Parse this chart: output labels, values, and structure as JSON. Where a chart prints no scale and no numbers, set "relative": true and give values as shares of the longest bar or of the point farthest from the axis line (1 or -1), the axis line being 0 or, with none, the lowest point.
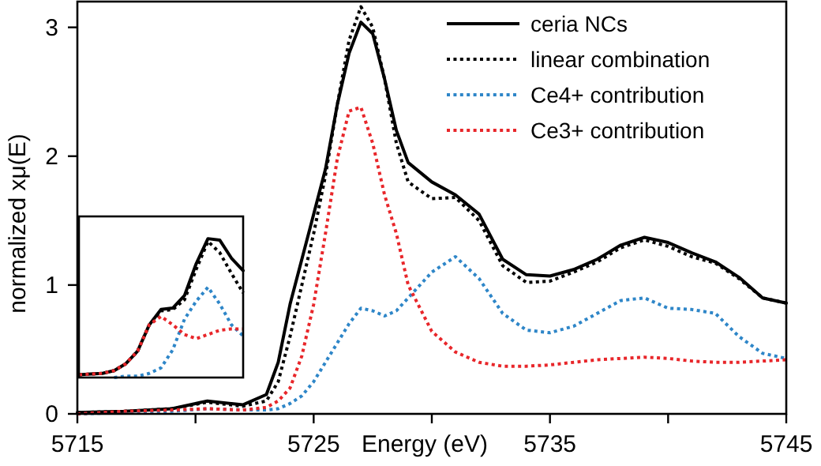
{
  "chart_data": [
    {
      "type": "line",
      "xlabel": "Energy (eV)",
      "ylabel": "normalized xμ(E)",
      "legend": "top right",
      "xlim": [
        5715,
        5745
      ],
      "xticks": [
        5715,
        {
          "value": 5720,
          "label": null
        },
        5725,
        {
          "value": 5730,
          "label": null
        },
        5735,
        {
          "value": 5740,
          "label": null
        },
        5745
      ],
      "ylim": [
        0,
        3.2
      ],
      "yticks": [
        0,
        1,
        2,
        3
      ],
      "x": [
        5715,
        5717,
        5719,
        5720.5,
        5722,
        5723,
        5723.5,
        5724,
        5724.5,
        5725,
        5725.5,
        5726,
        5726.5,
        5727,
        5727.5,
        5728,
        5728.5,
        5729,
        5730,
        5731,
        5732,
        5733,
        5734,
        5735,
        5736,
        5737,
        5738,
        5739,
        5740,
        5741,
        5742,
        5743,
        5744,
        5745
      ],
      "series": [
        {
          "name": "ceria NCs",
          "color": "#000000",
          "line_style": "solid",
          "values": [
            0.01,
            0.02,
            0.04,
            0.1,
            0.07,
            0.15,
            0.4,
            0.85,
            1.2,
            1.55,
            1.9,
            2.4,
            2.8,
            3.04,
            2.95,
            2.6,
            2.2,
            1.95,
            1.8,
            1.7,
            1.55,
            1.2,
            1.08,
            1.07,
            1.12,
            1.2,
            1.31,
            1.37,
            1.33,
            1.25,
            1.18,
            1.06,
            0.9,
            0.86
          ]
        },
        {
          "name": "linear combination",
          "color": "#000000",
          "line_style": "dotted",
          "values": [
            0.01,
            0.02,
            0.04,
            0.09,
            0.06,
            0.1,
            0.25,
            0.6,
            1.0,
            1.4,
            1.85,
            2.4,
            2.9,
            3.16,
            3.0,
            2.6,
            2.1,
            1.8,
            1.67,
            1.68,
            1.5,
            1.15,
            1.02,
            1.03,
            1.1,
            1.18,
            1.29,
            1.35,
            1.3,
            1.22,
            1.17,
            1.05,
            0.9,
            0.86
          ]
        },
        {
          "name": "Ce4+ contribution",
          "color": "#2e86c8",
          "line_style": "dotted",
          "values": [
            0,
            0.01,
            0.02,
            0.04,
            0.03,
            0.03,
            0.04,
            0.08,
            0.14,
            0.25,
            0.4,
            0.55,
            0.7,
            0.82,
            0.8,
            0.76,
            0.8,
            0.9,
            1.1,
            1.22,
            1.05,
            0.78,
            0.65,
            0.63,
            0.68,
            0.78,
            0.88,
            0.9,
            0.82,
            0.81,
            0.78,
            0.6,
            0.47,
            0.43
          ]
        },
        {
          "name": "Ce3+ contribution",
          "color": "#e8262a",
          "line_style": "dotted",
          "values": [
            0,
            0.02,
            0.03,
            0.04,
            0.03,
            0.05,
            0.1,
            0.2,
            0.45,
            0.85,
            1.4,
            1.98,
            2.35,
            2.38,
            2.1,
            1.7,
            1.4,
            1.0,
            0.64,
            0.48,
            0.4,
            0.37,
            0.37,
            0.38,
            0.4,
            0.42,
            0.43,
            0.44,
            0.43,
            0.41,
            0.4,
            0.4,
            0.41,
            0.42
          ]
        }
      ]
    },
    {
      "type": "line",
      "relative": true,
      "categories": [
        null,
        null,
        null,
        null,
        null,
        null,
        null,
        null,
        null,
        null,
        null,
        null,
        null,
        null,
        null
      ],
      "series": [
        {
          "color": "#000000",
          "line_style": "solid",
          "values": [
            0.02,
            0.025,
            0.03,
            0.05,
            0.1,
            0.19,
            0.38,
            0.49,
            0.5,
            0.59,
            0.82,
            1.0,
            0.99,
            0.86,
            0.77
          ]
        },
        {
          "color": "#000000",
          "line_style": "dotted",
          "values": [
            0.02,
            0.025,
            0.03,
            0.05,
            0.1,
            0.19,
            0.38,
            0.48,
            0.49,
            0.56,
            0.78,
            0.98,
            0.9,
            0.75,
            0.61
          ]
        },
        {
          "color": "#2e86c8",
          "line_style": "dotted",
          "values": [
            null,
            null,
            null,
            0,
            0.01,
            0.01,
            0.03,
            0.07,
            0.2,
            0.42,
            0.55,
            0.65,
            0.53,
            0.38,
            0.3
          ]
        },
        {
          "color": "#e8262a",
          "line_style": "dotted",
          "values": [
            0.02,
            0.025,
            0.03,
            0.05,
            0.1,
            0.19,
            0.38,
            0.44,
            0.38,
            0.31,
            0.28,
            0.31,
            0.34,
            0.35,
            0.35
          ]
        }
      ]
    }
  ]
}
